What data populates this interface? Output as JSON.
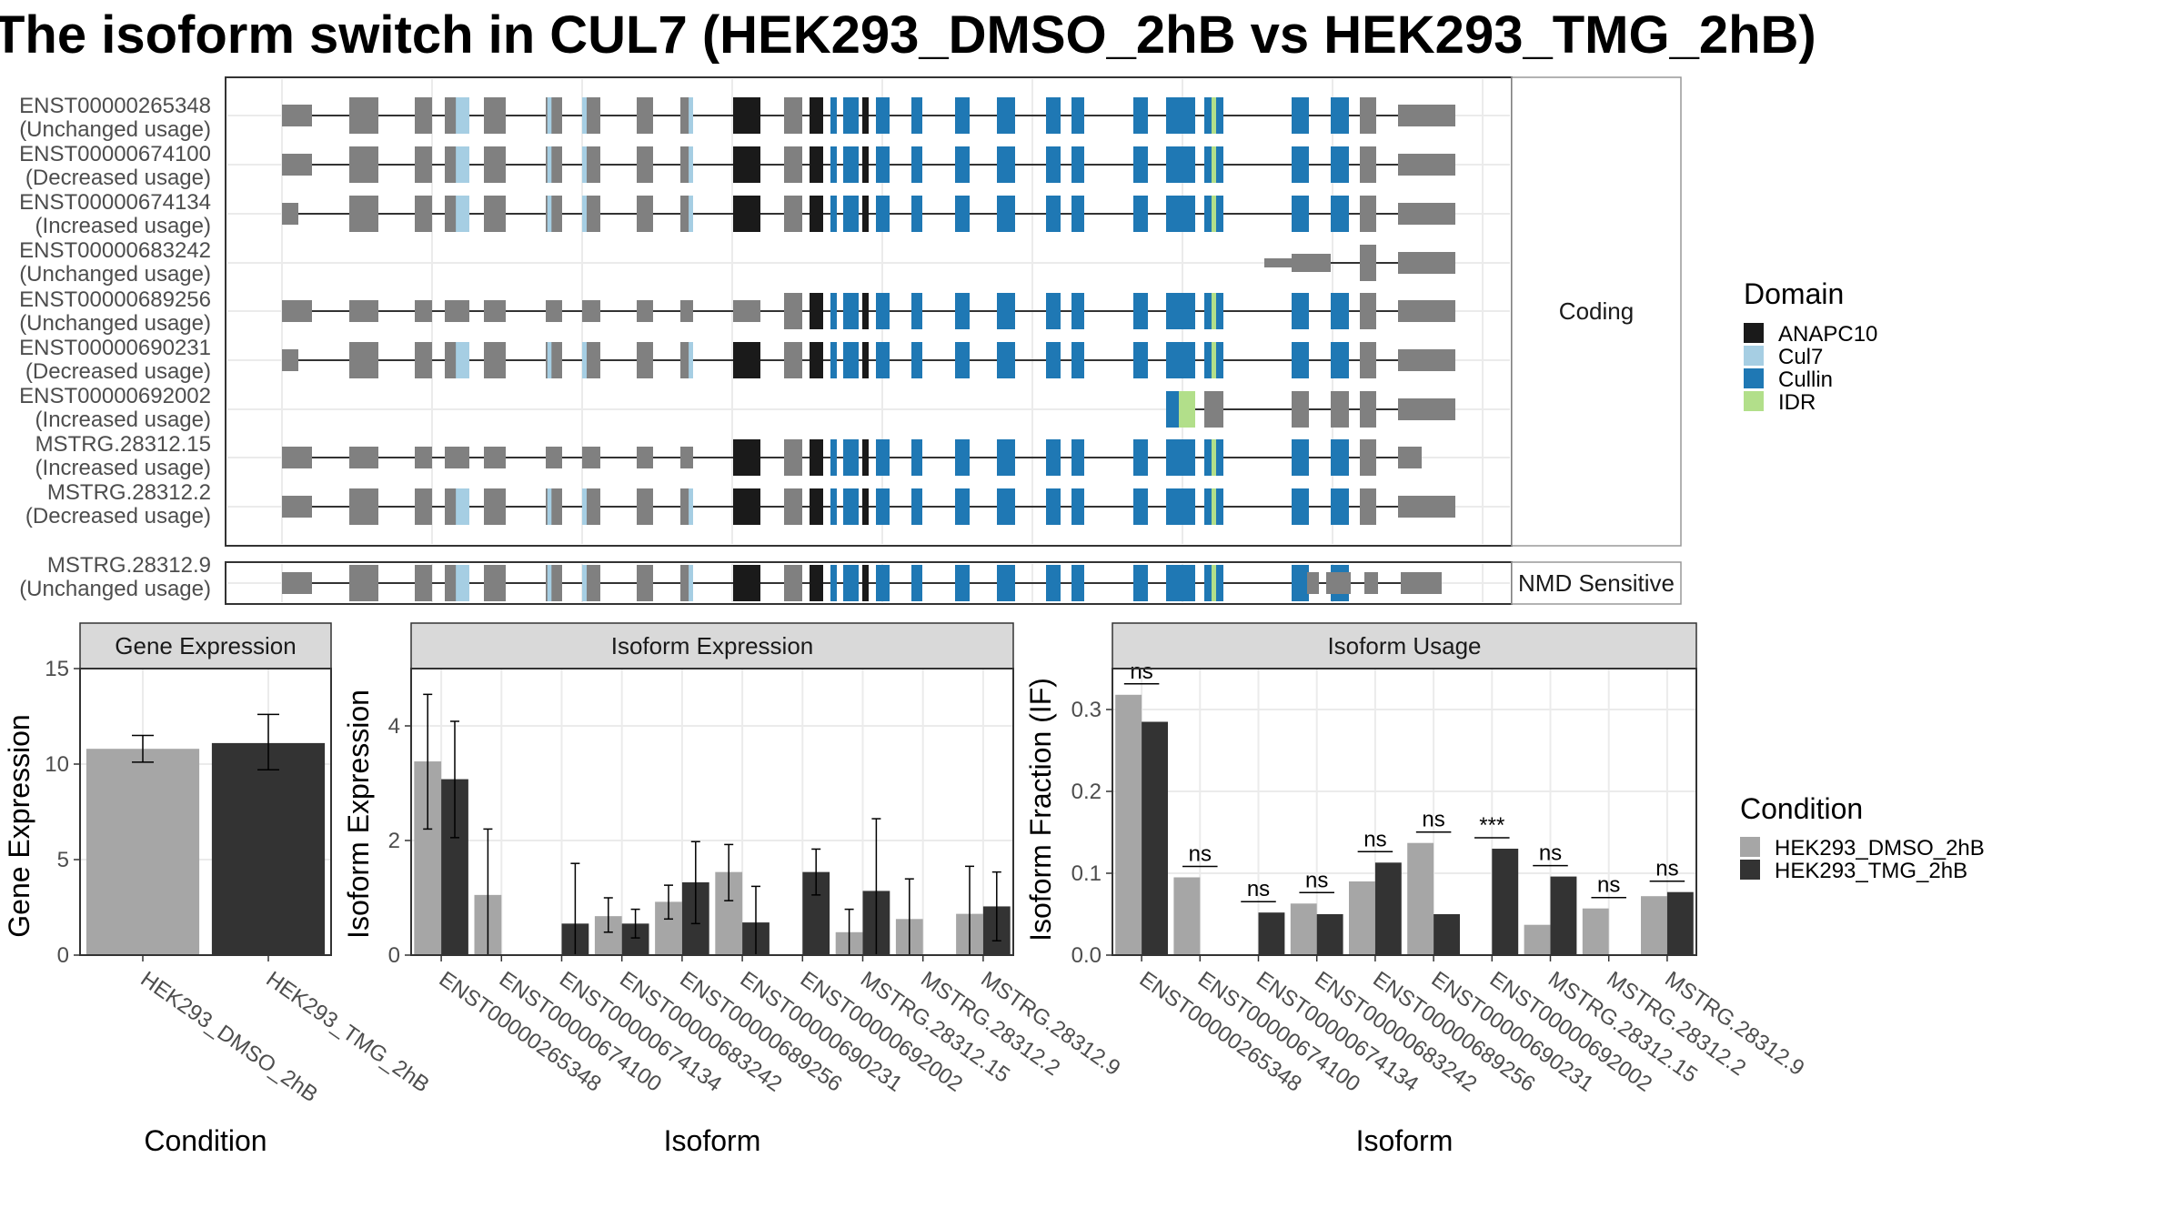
{
  "title": "The isoform switch in CUL7 (HEK293_DMSO_2hB vs HEK293_TMG_2hB)",
  "structure": {
    "strip_coding": "Coding",
    "strip_nmd": "NMD Sensitive",
    "transcripts": [
      {
        "id": "ENST00000265348",
        "usage": "(Unchanged usage)"
      },
      {
        "id": "ENST00000674100",
        "usage": "(Decreased usage)"
      },
      {
        "id": "ENST00000674134",
        "usage": "(Increased usage)"
      },
      {
        "id": "ENST00000683242",
        "usage": "(Unchanged usage)"
      },
      {
        "id": "ENST00000689256",
        "usage": "(Unchanged usage)"
      },
      {
        "id": "ENST00000690231",
        "usage": "(Decreased usage)"
      },
      {
        "id": "ENST00000692002",
        "usage": "(Increased usage)"
      },
      {
        "id": "MSTRG.28312.15",
        "usage": "(Increased usage)"
      },
      {
        "id": "MSTRG.28312.2",
        "usage": "(Decreased usage)"
      },
      {
        "id": "MSTRG.28312.9",
        "usage": "(Unchanged usage)"
      }
    ]
  },
  "domain_legend": {
    "title": "Domain",
    "items": [
      {
        "label": "ANAPC10",
        "color": "#1a1a1a"
      },
      {
        "label": "Cul7",
        "color": "#a6cee3"
      },
      {
        "label": "Cullin",
        "color": "#1f78b4"
      },
      {
        "label": "IDR",
        "color": "#b2df8a"
      }
    ]
  },
  "condition_legend": {
    "title": "Condition",
    "items": [
      {
        "label": "HEK293_DMSO_2hB",
        "color": "#a6a6a6"
      },
      {
        "label": "HEK293_TMG_2hB",
        "color": "#333333"
      }
    ]
  },
  "chart_data": [
    {
      "type": "bar",
      "title": "Gene Expression",
      "xlabel": "Condition",
      "ylabel": "Gene Expression",
      "ylim": [
        0,
        15
      ],
      "yticks": [
        0,
        5,
        10,
        15
      ],
      "categories": [
        "HEK293_DMSO_2hB",
        "HEK293_TMG_2hB"
      ],
      "values": [
        10.8,
        11.1
      ],
      "error_low": [
        10.1,
        9.7
      ],
      "error_high": [
        11.5,
        12.6
      ]
    },
    {
      "type": "bar",
      "title": "Isoform Expression",
      "xlabel": "Isoform",
      "ylabel": "Isoform Expression",
      "ylim": [
        0,
        5
      ],
      "yticks": [
        0,
        2,
        4
      ],
      "categories": [
        "ENST00000265348",
        "ENST00000674100",
        "ENST00000674134",
        "ENST00000683242",
        "ENST00000689256",
        "ENST00000690231",
        "ENST00000692002",
        "MSTRG.28312.15",
        "MSTRG.28312.2",
        "MSTRG.28312.9"
      ],
      "series": [
        {
          "name": "HEK293_DMSO_2hB",
          "values": [
            3.38,
            1.05,
            0.0,
            0.68,
            0.93,
            1.45,
            0.0,
            0.4,
            0.63,
            0.72
          ],
          "error_low": [
            2.2,
            0.0,
            0.0,
            0.4,
            0.63,
            0.95,
            0.0,
            0.0,
            0.0,
            0.0
          ],
          "error_high": [
            4.55,
            2.2,
            0.0,
            1.0,
            1.22,
            1.93,
            0.0,
            0.8,
            1.33,
            1.55
          ]
        },
        {
          "name": "HEK293_TMG_2hB",
          "values": [
            3.07,
            0.0,
            0.55,
            0.55,
            1.27,
            0.57,
            1.45,
            1.12,
            0.0,
            0.85
          ],
          "error_low": [
            2.05,
            0.0,
            0.0,
            0.3,
            0.55,
            0.0,
            1.05,
            0.0,
            0.0,
            0.25
          ],
          "error_high": [
            4.08,
            0.0,
            1.6,
            0.8,
            1.98,
            1.2,
            1.85,
            2.38,
            0.0,
            1.45
          ]
        }
      ]
    },
    {
      "type": "bar",
      "title": "Isoform Usage",
      "xlabel": "Isoform",
      "ylabel": "Isoform Fraction (IF)",
      "ylim": [
        0,
        0.35
      ],
      "yticks": [
        0.0,
        0.1,
        0.2,
        0.3
      ],
      "categories": [
        "ENST00000265348",
        "ENST00000674100",
        "ENST00000674134",
        "ENST00000683242",
        "ENST00000689256",
        "ENST00000690231",
        "ENST00000692002",
        "MSTRG.28312.15",
        "MSTRG.28312.2",
        "MSTRG.28312.9"
      ],
      "series": [
        {
          "name": "HEK293_DMSO_2hB",
          "values": [
            0.318,
            0.095,
            0.0,
            0.063,
            0.09,
            0.137,
            0.0,
            0.037,
            0.057,
            0.072
          ]
        },
        {
          "name": "HEK293_TMG_2hB",
          "values": [
            0.285,
            0.0,
            0.052,
            0.05,
            0.113,
            0.05,
            0.13,
            0.096,
            0.0,
            0.077
          ]
        }
      ],
      "significance": [
        "ns",
        "ns",
        "ns",
        "ns",
        "ns",
        "ns",
        "***",
        "ns",
        "ns",
        "ns"
      ]
    }
  ]
}
